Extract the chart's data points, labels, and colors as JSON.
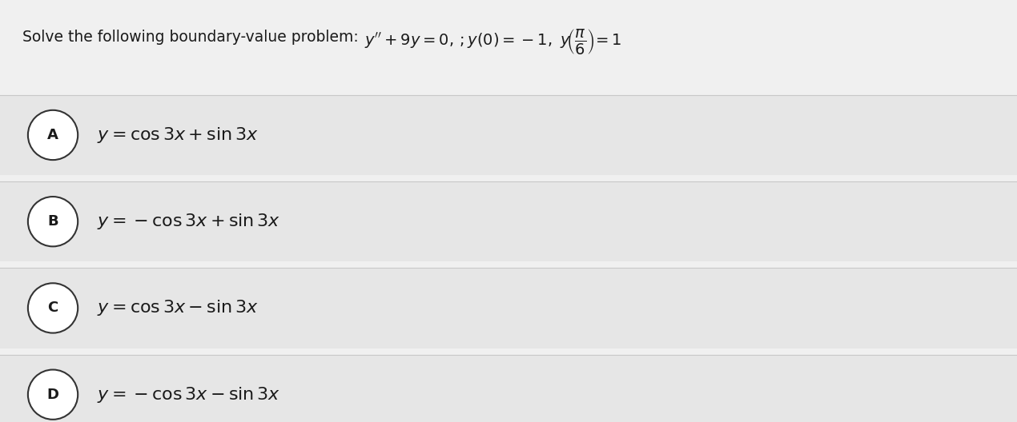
{
  "background_color": "#f0f0f0",
  "title_plain": "Solve the following boundary-value problem: ",
  "title_math": "$y'' +9y=0,\\,;y(0)= -1,\\ y\\!\\left(\\dfrac{\\pi}{6}\\right)\\!=1$",
  "options": [
    {
      "label": "A",
      "text": "$y=\\cos 3x+\\sin 3x$"
    },
    {
      "label": "B",
      "text": "$y=-\\cos 3x+\\sin 3x$"
    },
    {
      "label": "C",
      "text": "$y=\\cos 3x-\\sin 3x$"
    },
    {
      "label": "D",
      "text": "$y=-\\cos 3x-\\sin 3x$"
    }
  ],
  "option_bg_color": "#e6e6e6",
  "divider_color": "#c8c8c8",
  "circle_bg": "#ffffff",
  "circle_edge": "#333333",
  "text_color": "#1a1a1a",
  "bg_color": "#f0f0f0",
  "title_fontsize": 13.5,
  "option_fontsize": 16,
  "label_fontsize": 13
}
